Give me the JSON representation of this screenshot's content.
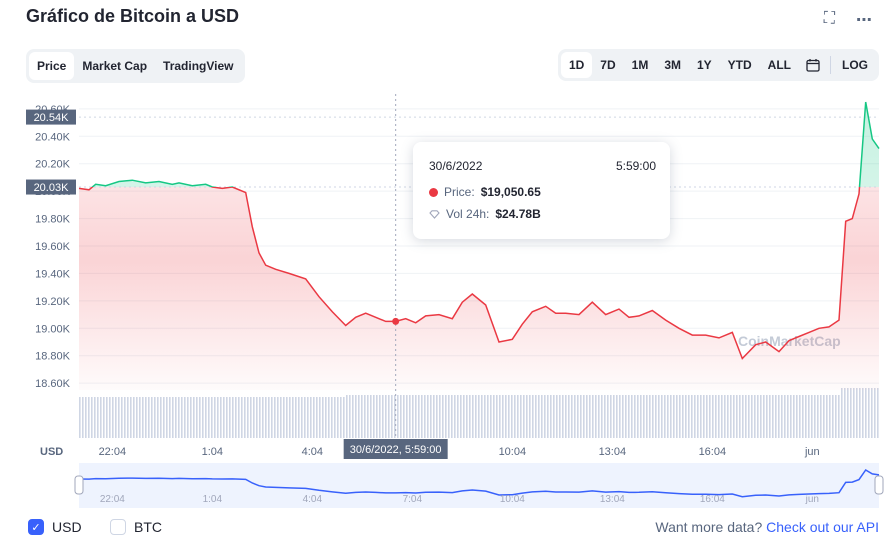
{
  "header": {
    "title": "Gráfico de Bitcoin a USD",
    "expand_icon": "expand-icon",
    "more_icon": "more-dots-icon"
  },
  "tabs": [
    {
      "label": "Price",
      "active": true
    },
    {
      "label": "Market Cap",
      "active": false
    },
    {
      "label": "TradingView",
      "active": false
    }
  ],
  "ranges": [
    {
      "label": "1D",
      "active": true
    },
    {
      "label": "7D",
      "active": false
    },
    {
      "label": "1M",
      "active": false
    },
    {
      "label": "3M",
      "active": false
    },
    {
      "label": "1Y",
      "active": false
    },
    {
      "label": "YTD",
      "active": false
    },
    {
      "label": "ALL",
      "active": false
    }
  ],
  "calendar_icon": "calendar-icon",
  "log_label": "LOG",
  "tooltip": {
    "date": "30/6/2022",
    "time": "5:59:00",
    "price_label": "Price:",
    "price_value": "$19,050.65",
    "vol_label": "Vol 24h:",
    "vol_value": "$24.78B"
  },
  "crosshair_label": "30/6/2022, 5:59:00",
  "watermark": "CoinMarketCap",
  "footer": {
    "usd_label": "USD",
    "btc_label": "BTC",
    "more_text": "Want more data?",
    "api_link": "Check out our API"
  },
  "colors": {
    "up": "#16c784",
    "down": "#ea3943",
    "accent": "#3861fb",
    "volume": "#cfd6e4"
  },
  "chart_data": {
    "type": "line",
    "currency_label": "USD",
    "y_ticks": [
      "20.60K",
      "20.40K",
      "20.20K",
      "20.00K",
      "19.80K",
      "19.60K",
      "19.40K",
      "19.20K",
      "19.00K",
      "18.80K",
      "18.60K"
    ],
    "ylim": [
      18550,
      20650
    ],
    "x_ticks": [
      "22:04",
      "1:04",
      "4:04",
      "7:04",
      "10:04",
      "13:04",
      "16:04",
      "jun"
    ],
    "x_tick_hours": [
      1,
      4,
      7,
      10,
      13,
      16,
      19,
      22
    ],
    "xlim_hours": [
      0,
      24
    ],
    "open_price_label": "20.03K",
    "high_price_label": "20.54K",
    "open_price": 20030,
    "high_price": 20540,
    "hover_hour": 9.5,
    "hover_price": 19050.65,
    "series": [
      {
        "x": [
          0,
          0.3,
          0.5,
          0.8,
          1.2,
          1.6,
          2,
          2.4,
          2.8,
          3,
          3.4,
          3.8,
          4,
          4.3,
          4.6,
          5,
          5.2,
          5.4,
          5.6,
          5.9,
          6.3,
          6.8,
          7.2,
          7.6,
          8,
          8.3,
          8.6,
          8.9,
          9.2,
          9.5,
          9.8,
          10.1,
          10.4,
          10.8,
          11.2,
          11.5,
          11.8,
          12.2,
          12.6,
          13,
          13.3,
          13.6,
          14,
          14.3,
          14.6,
          15,
          15.4,
          15.8,
          16.2,
          16.5,
          16.8,
          17.2,
          17.6,
          18,
          18.4,
          18.8,
          19.2,
          19.6,
          19.9,
          20.3,
          20.6,
          21,
          21.3,
          21.6,
          21.9,
          22.2,
          22.5,
          22.8,
          23,
          23.2,
          23.4,
          23.6,
          23.8,
          24
        ],
        "y": [
          20020,
          20010,
          20050,
          20040,
          20070,
          20080,
          20060,
          20070,
          20050,
          20060,
          20040,
          20050,
          20030,
          20020,
          20030,
          19990,
          19740,
          19550,
          19460,
          19430,
          19400,
          19360,
          19230,
          19120,
          19020,
          19080,
          19110,
          19080,
          19050,
          19050,
          19070,
          19040,
          19090,
          19100,
          19070,
          19190,
          19250,
          19170,
          18900,
          18920,
          19030,
          19120,
          19160,
          19110,
          19110,
          19100,
          19190,
          19100,
          19140,
          19080,
          19090,
          19130,
          19060,
          19000,
          18950,
          18950,
          18930,
          18970,
          18780,
          18880,
          18900,
          18830,
          18910,
          18940,
          18970,
          19000,
          19010,
          19060,
          19780,
          19800,
          19980,
          20650,
          20380,
          20310
        ]
      }
    ],
    "navigator_label_hours": [
      1,
      4,
      7,
      10,
      13,
      16,
      19,
      22
    ]
  }
}
